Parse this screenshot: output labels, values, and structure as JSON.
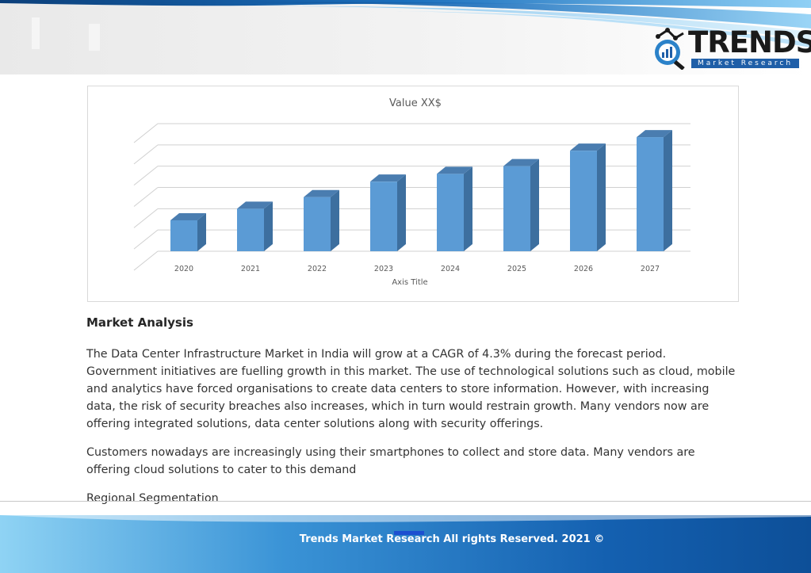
{
  "header": {
    "logo_word": "TRENDS",
    "logo_tagline": "Market Research",
    "logo_icon": "magnifier-chart-icon",
    "colors": {
      "swoosh_dark": "#0b4f8f",
      "swoosh_light": "#4aa3e0",
      "logo_blue": "#1f5fa8"
    }
  },
  "chart_data": {
    "type": "bar",
    "title": "Value XX$",
    "xlabel": "Axis Title",
    "ylabel": "",
    "categories": [
      "2020",
      "2021",
      "2022",
      "2023",
      "2024",
      "2025",
      "2026",
      "2027"
    ],
    "values": [
      1.6,
      2.2,
      2.8,
      3.6,
      4.0,
      4.4,
      5.2,
      5.9
    ],
    "ylim": [
      0,
      6.6
    ],
    "grid": true,
    "style": "3d-column",
    "bar_color": "#5b9bd5"
  },
  "content": {
    "section_title": "Market Analysis",
    "paragraphs": [
      "The Data Center Infrastructure Market in India will grow at a CAGR of 4.3% during the forecast period. Government initiatives are fuelling growth in this market. The use of technological solutions such as cloud, mobile and analytics have forced organisations to create data centers to store information. However, with increasing data, the risk of security breaches also increases, which in turn would restrain growth. Many vendors now are offering integrated solutions, data center solutions along with security offerings.",
      "Customers nowadays are increasingly using their smartphones to collect and store data. Many vendors are offering cloud solutions to cater to this demand",
      "Regional Segmentation"
    ]
  },
  "footer": {
    "text": "Trends Market Research All rights Reserved. 2021 ©"
  }
}
